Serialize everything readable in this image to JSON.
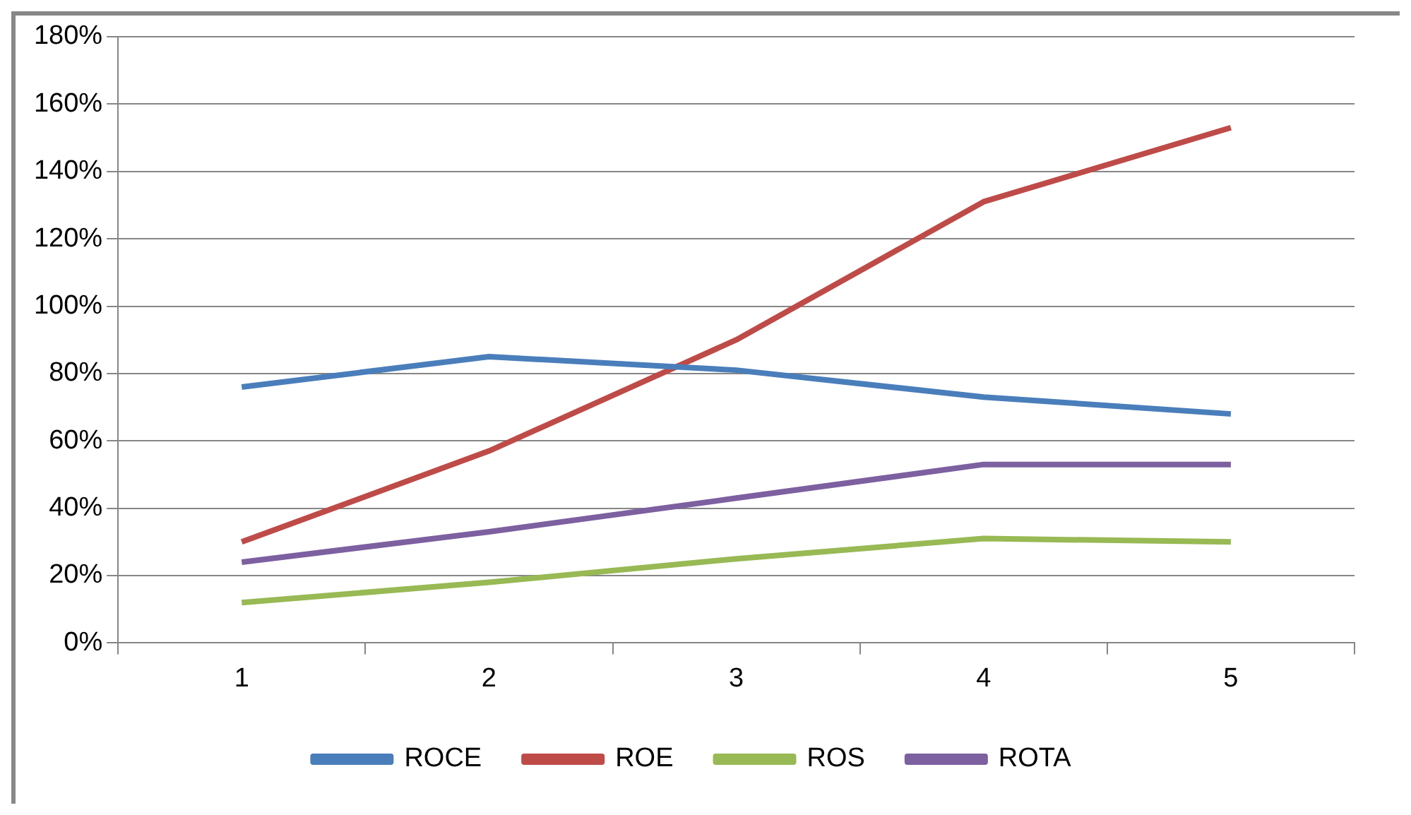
{
  "chart_data": {
    "type": "line",
    "categories": [
      "1",
      "2",
      "3",
      "4",
      "5"
    ],
    "series": [
      {
        "name": "ROCE",
        "color": "#4a7ebb",
        "values": [
          76,
          85,
          81,
          73,
          68
        ]
      },
      {
        "name": "ROE",
        "color": "#be4b48",
        "values": [
          30,
          57,
          90,
          131,
          153
        ]
      },
      {
        "name": "ROS",
        "color": "#98b954",
        "values": [
          12,
          18,
          25,
          31,
          30
        ]
      },
      {
        "name": "ROTA",
        "color": "#7d60a0",
        "values": [
          24,
          33,
          43,
          53,
          53
        ]
      }
    ],
    "ylim": [
      0,
      180
    ],
    "yticks": [
      {
        "value": 0,
        "label": "0%"
      },
      {
        "value": 20,
        "label": "20%"
      },
      {
        "value": 40,
        "label": "40%"
      },
      {
        "value": 60,
        "label": "60%"
      },
      {
        "value": 80,
        "label": "80%"
      },
      {
        "value": 100,
        "label": "100%"
      },
      {
        "value": 120,
        "label": "120%"
      },
      {
        "value": 140,
        "label": "140%"
      },
      {
        "value": 160,
        "label": "160%"
      },
      {
        "value": 180,
        "label": "180%"
      }
    ],
    "grid": "y",
    "legend": "bottom",
    "marker": "none",
    "line_style": "solid"
  }
}
